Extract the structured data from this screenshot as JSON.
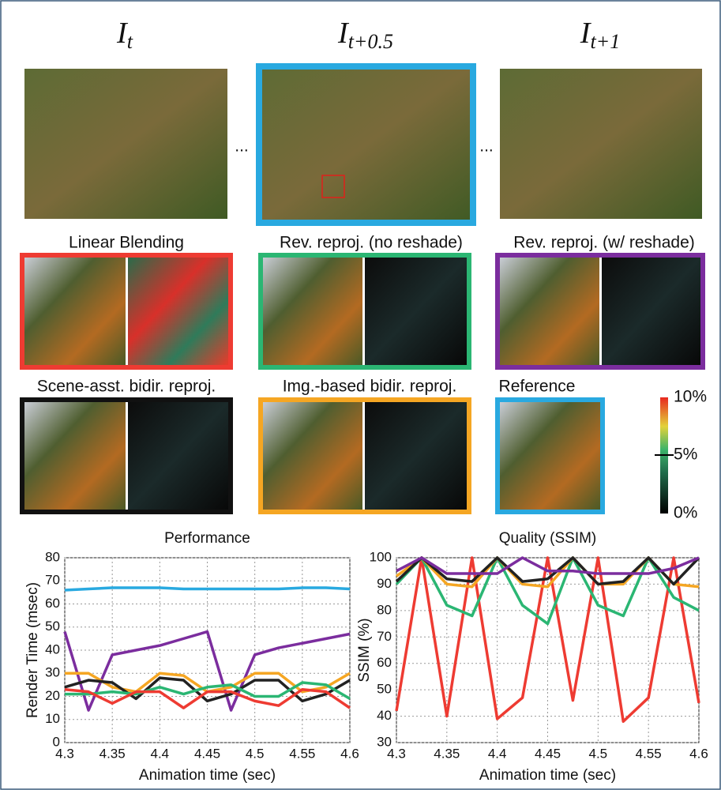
{
  "frames": [
    {
      "symbol": "I",
      "subscript": "t"
    },
    {
      "symbol": "I",
      "subscript": "t+0.5"
    },
    {
      "symbol": "I",
      "subscript": "t+1"
    }
  ],
  "ellipsis": "...",
  "panels": [
    "Linear Blending",
    "Rev. reproj. (no reshade)",
    "Rev. reproj. (w/ reshade)",
    "Scene-asst. bidir. reproj.",
    "Img.-based bidir. reproj.",
    "Reference"
  ],
  "colorbar": [
    "10%",
    "5%",
    "0%"
  ],
  "chart_data": [
    {
      "type": "line",
      "title": "Performance",
      "x_label": "Animation time (sec)",
      "y_label": "Render Time (msec)",
      "x": [
        4.3,
        4.325,
        4.35,
        4.375,
        4.4,
        4.425,
        4.45,
        4.475,
        4.5,
        4.525,
        4.55,
        4.575,
        4.6
      ],
      "xlim": [
        4.3,
        4.6
      ],
      "xticks": [
        4.3,
        4.35,
        4.4,
        4.45,
        4.5,
        4.55,
        4.6
      ],
      "ylim": [
        0,
        80
      ],
      "yticks": [
        0,
        10,
        20,
        30,
        40,
        50,
        60,
        70,
        80
      ],
      "grid": true,
      "series": [
        {
          "color": "#29a9e0",
          "values": [
            66,
            66.5,
            67,
            67,
            67,
            66.5,
            66.5,
            66.5,
            66.5,
            66.5,
            67,
            67,
            66.5
          ]
        },
        {
          "color": "#7b2d9e",
          "values": [
            48,
            14,
            38,
            40,
            42,
            45,
            48,
            14,
            38,
            41,
            43,
            45,
            47
          ]
        },
        {
          "color": "#f5a623",
          "values": [
            30,
            30,
            24,
            22,
            30,
            29,
            22,
            24,
            30,
            30,
            22,
            24,
            30
          ]
        },
        {
          "color": "#222222",
          "values": [
            24,
            27,
            26,
            19,
            28,
            27,
            18,
            21,
            27,
            27,
            18,
            21,
            27
          ]
        },
        {
          "color": "#2bb673",
          "values": [
            21,
            21,
            22,
            21,
            24,
            21,
            24,
            25,
            20,
            20,
            26,
            25,
            19
          ]
        },
        {
          "color": "#ee3b32",
          "values": [
            23,
            22,
            17,
            22,
            22,
            15,
            22,
            22,
            18,
            16,
            23,
            22,
            15
          ]
        }
      ]
    },
    {
      "type": "line",
      "title": "Quality (SSIM)",
      "x_label": "Animation time (sec)",
      "y_label": "SSIM (%)",
      "x": [
        4.3,
        4.325,
        4.35,
        4.375,
        4.4,
        4.425,
        4.45,
        4.475,
        4.5,
        4.525,
        4.55,
        4.575,
        4.6
      ],
      "xlim": [
        4.3,
        4.6
      ],
      "xticks": [
        4.3,
        4.35,
        4.4,
        4.45,
        4.5,
        4.55,
        4.6
      ],
      "ylim": [
        30,
        100
      ],
      "yticks": [
        30,
        40,
        50,
        60,
        70,
        80,
        90,
        100
      ],
      "grid": true,
      "series": [
        {
          "color": "#ee3b32",
          "values": [
            42,
            100,
            40,
            100,
            39,
            47,
            100,
            46,
            100,
            38,
            47,
            100,
            45
          ]
        },
        {
          "color": "#2bb673",
          "values": [
            90,
            100,
            82,
            78,
            100,
            82,
            75,
            100,
            82,
            78,
            100,
            85,
            80
          ]
        },
        {
          "color": "#f5a623",
          "values": [
            93,
            100,
            90,
            89,
            100,
            90,
            89,
            100,
            90,
            90,
            100,
            90,
            89
          ]
        },
        {
          "color": "#222222",
          "values": [
            91,
            100,
            92,
            91,
            100,
            91,
            92,
            100,
            90,
            91,
            100,
            90,
            100
          ]
        },
        {
          "color": "#7b2d9e",
          "values": [
            95,
            100,
            94,
            94,
            94,
            100,
            95,
            95,
            94,
            94,
            94,
            96,
            100
          ]
        }
      ]
    }
  ]
}
